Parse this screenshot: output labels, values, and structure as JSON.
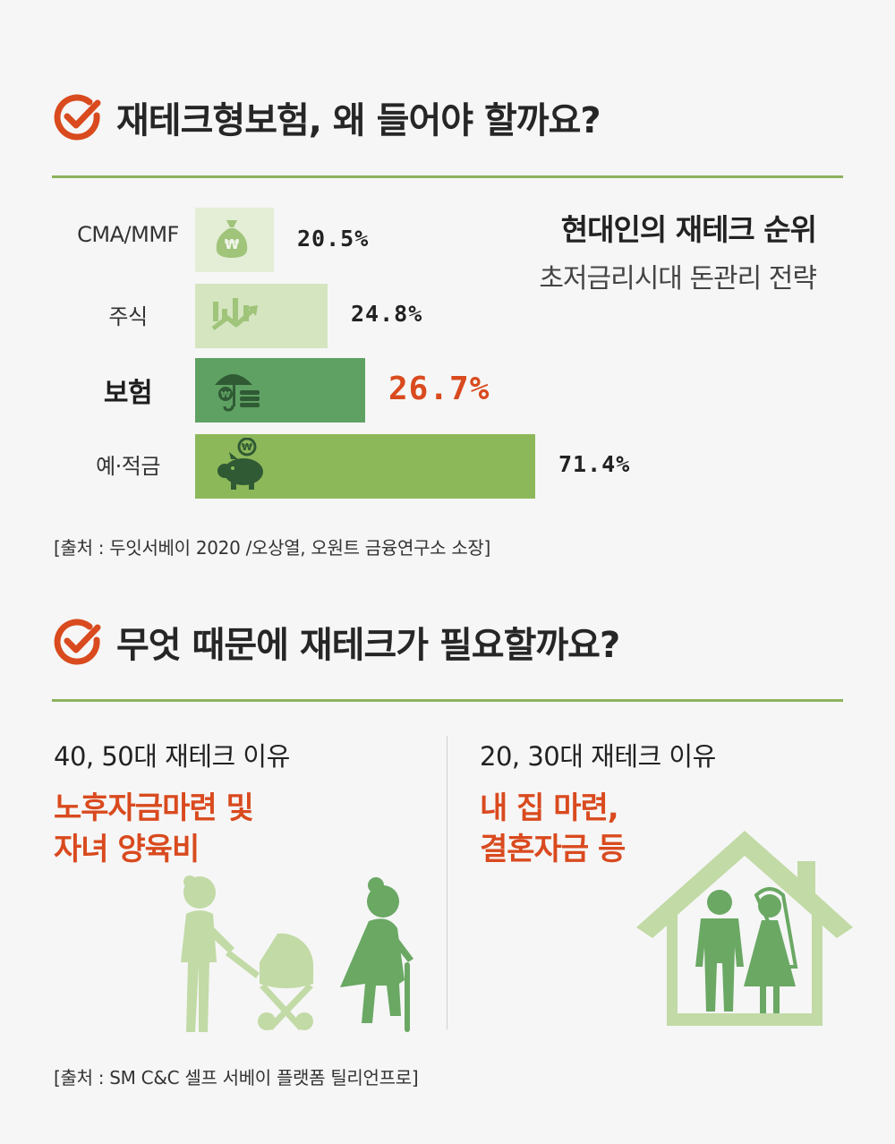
{
  "section1": {
    "title": "재테크형보험, 왜 들어야 할까요?"
  },
  "section2": {
    "title": "무엇 때문에 재테크가 필요할까요?"
  },
  "chart_data": {
    "type": "bar",
    "orientation": "horizontal",
    "title": "현대인의 재테크 순위",
    "subtitle": "초저금리시대 돈관리 전략",
    "categories": [
      "CMA/MMF",
      "주식",
      "보험",
      "예·적금"
    ],
    "values": [
      20.5,
      24.8,
      26.7,
      71.4
    ],
    "value_labels": [
      "20.5%",
      "24.8%",
      "26.7%",
      "71.4%"
    ],
    "highlight_index": 2,
    "bar_colors": [
      "#e4edd6",
      "#d5e5c0",
      "#5fa163",
      "#8cb85a"
    ],
    "icons": [
      "money-bag-icon",
      "stock-chart-icon",
      "umbrella-icon",
      "piggy-bank-icon"
    ],
    "xlim": [
      0,
      100
    ],
    "grid": false,
    "legend": "none"
  },
  "source1": "[출처 : 두잇서베이 2020 /오상열, 오원트 금융연구소 소장]",
  "reasons": {
    "left": {
      "heading": "40, 50대 재테크 이유",
      "line1": "노후자금마련 및",
      "line2": "자녀 양육비"
    },
    "right": {
      "heading": "20, 30대 재테크 이유",
      "line1": "내 집 마련,",
      "line2": "결혼자금 등"
    }
  },
  "source2": "[출처 : SM C&C 셀프 서베이 플랫폼 틸리언프로]",
  "colors": {
    "accent": "#d94a1e",
    "rule": "#8bb25b",
    "dark_green": "#5fa163",
    "light_green": "#b9d49b",
    "background": "#f6f6f6"
  }
}
